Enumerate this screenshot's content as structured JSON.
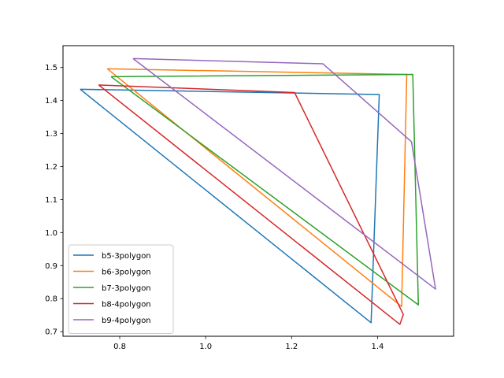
{
  "chart_data": {
    "type": "line",
    "title": "",
    "xlabel": "",
    "ylabel": "",
    "xlim": [
      0.668,
      1.577
    ],
    "ylim": [
      0.686,
      1.566
    ],
    "x_ticks": [
      0.8,
      1.0,
      1.2,
      1.4
    ],
    "x_tick_labels": [
      "0.8",
      "1.0",
      "1.2",
      "1.4"
    ],
    "y_ticks": [
      0.7,
      0.8,
      0.9,
      1.0,
      1.1,
      1.2,
      1.3,
      1.4,
      1.5
    ],
    "y_tick_labels": [
      "0.7",
      "0.8",
      "0.9",
      "1.0",
      "1.1",
      "1.2",
      "1.3",
      "1.4",
      "1.5"
    ],
    "grid": false,
    "legend_position": "lower-left",
    "series": [
      {
        "name": "b5-3polygon",
        "color": "#1f77b4",
        "points": [
          [
            0.708,
            1.434
          ],
          [
            1.404,
            1.418
          ],
          [
            1.385,
            0.727
          ],
          [
            0.708,
            1.434
          ]
        ]
      },
      {
        "name": "b6-3polygon",
        "color": "#ff7f0e",
        "points": [
          [
            0.771,
            1.496
          ],
          [
            1.468,
            1.479
          ],
          [
            1.456,
            0.776
          ],
          [
            0.771,
            1.496
          ]
        ]
      },
      {
        "name": "b7-3polygon",
        "color": "#2ca02c",
        "points": [
          [
            0.78,
            1.472
          ],
          [
            1.482,
            1.479
          ],
          [
            1.495,
            0.781
          ],
          [
            0.78,
            1.472
          ]
        ]
      },
      {
        "name": "b8-4polygon",
        "color": "#d62728",
        "points": [
          [
            0.751,
            1.447
          ],
          [
            1.207,
            1.424
          ],
          [
            1.46,
            0.752
          ],
          [
            1.452,
            0.722
          ],
          [
            0.751,
            1.447
          ]
        ]
      },
      {
        "name": "b9-4polygon",
        "color": "#9467bd",
        "points": [
          [
            0.831,
            1.527
          ],
          [
            1.273,
            1.511
          ],
          [
            1.479,
            1.275
          ],
          [
            1.535,
            0.829
          ],
          [
            0.831,
            1.527
          ]
        ]
      }
    ]
  }
}
